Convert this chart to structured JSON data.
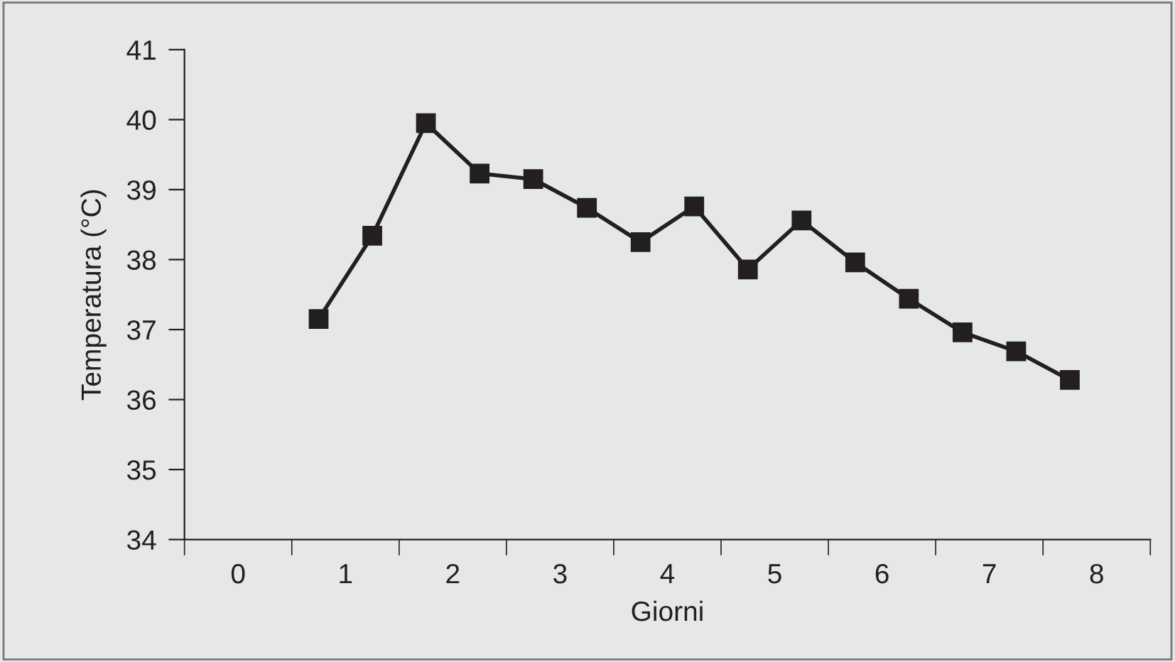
{
  "chart_data": {
    "type": "line",
    "xlabel": "Giorni",
    "ylabel": "Temperatura (°C)",
    "x": [
      0.75,
      1.25,
      1.75,
      2.25,
      2.75,
      3.25,
      3.75,
      4.25,
      4.75,
      5.25,
      5.75,
      6.25,
      6.75,
      7.25,
      7.75
    ],
    "series": [
      {
        "color": "#231f20",
        "values": [
          37.15,
          38.34,
          39.95,
          39.23,
          39.15,
          38.74,
          38.25,
          38.76,
          37.86,
          38.56,
          37.96,
          37.44,
          36.96,
          36.69,
          36.28
        ]
      }
    ],
    "xlim": [
      -0.5,
      8.5
    ],
    "xticks": [
      {
        "value": -0.5,
        "label": null
      },
      {
        "value": 0,
        "label": "0"
      },
      {
        "value": 0.5,
        "label": null
      },
      {
        "value": 1,
        "label": "1"
      },
      {
        "value": 1.5,
        "label": null
      },
      {
        "value": 2,
        "label": "2"
      },
      {
        "value": 2.5,
        "label": null
      },
      {
        "value": 3,
        "label": "3"
      },
      {
        "value": 3.5,
        "label": null
      },
      {
        "value": 4,
        "label": "4"
      },
      {
        "value": 4.5,
        "label": null
      },
      {
        "value": 5,
        "label": "5"
      },
      {
        "value": 5.5,
        "label": null
      },
      {
        "value": 6,
        "label": "6"
      },
      {
        "value": 6.5,
        "label": null
      },
      {
        "value": 7,
        "label": "7"
      },
      {
        "value": 7.5,
        "label": null
      },
      {
        "value": 8,
        "label": "8"
      },
      {
        "value": 8.5,
        "label": null
      }
    ],
    "ylim": [
      34,
      41
    ],
    "yticks": [
      34,
      35,
      36,
      37,
      38,
      39,
      40,
      41
    ],
    "grid": false,
    "legend": false,
    "marker": "square",
    "line_style": "solid"
  }
}
